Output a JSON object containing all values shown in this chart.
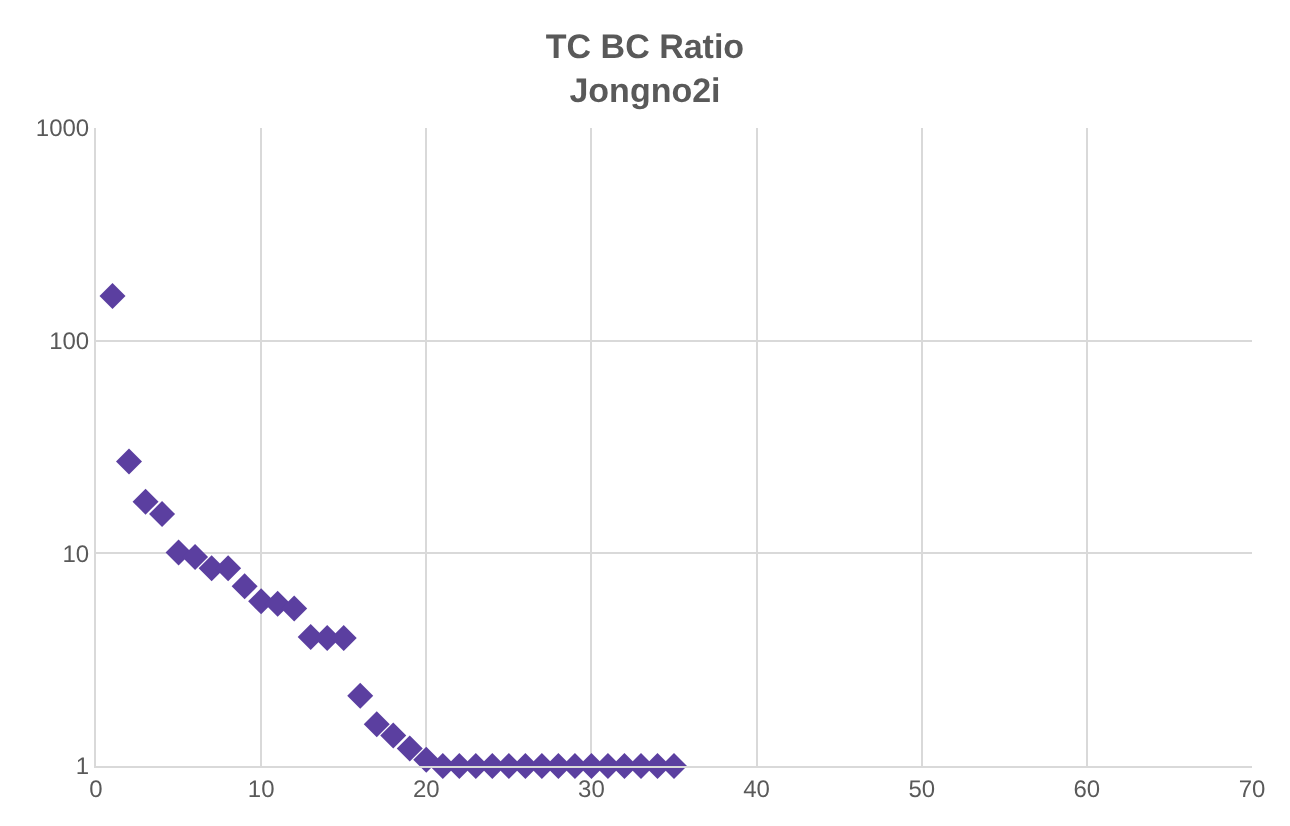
{
  "chart_data": {
    "type": "scatter",
    "title": "TC BC Ratio",
    "subtitle": "Jongno2i",
    "x": [
      1,
      2,
      3,
      4,
      5,
      6,
      7,
      8,
      9,
      10,
      11,
      12,
      13,
      14,
      15,
      16,
      17,
      18,
      19,
      20,
      21,
      22,
      23,
      24,
      25,
      26,
      27,
      28,
      29,
      30,
      31,
      32,
      33,
      34,
      35
    ],
    "series": [
      {
        "color": "#5b3fa0",
        "values": [
          162,
          27,
          17.5,
          15.3,
          10.1,
          9.6,
          8.5,
          8.5,
          7.0,
          5.95,
          5.8,
          5.5,
          4.04,
          4.0,
          4.0,
          2.14,
          1.57,
          1.39,
          1.21,
          1.07,
          1,
          1,
          1,
          1,
          1,
          1,
          1,
          1,
          1,
          1,
          1,
          1,
          1,
          1,
          1
        ]
      }
    ],
    "xlim": [
      0,
      70
    ],
    "xticks": [
      0,
      10,
      20,
      30,
      40,
      50,
      60,
      70
    ],
    "ylim": [
      1,
      1000
    ],
    "yticks": [
      1,
      10,
      100,
      1000
    ],
    "log": "y",
    "grid": true,
    "marker": "diamond"
  }
}
